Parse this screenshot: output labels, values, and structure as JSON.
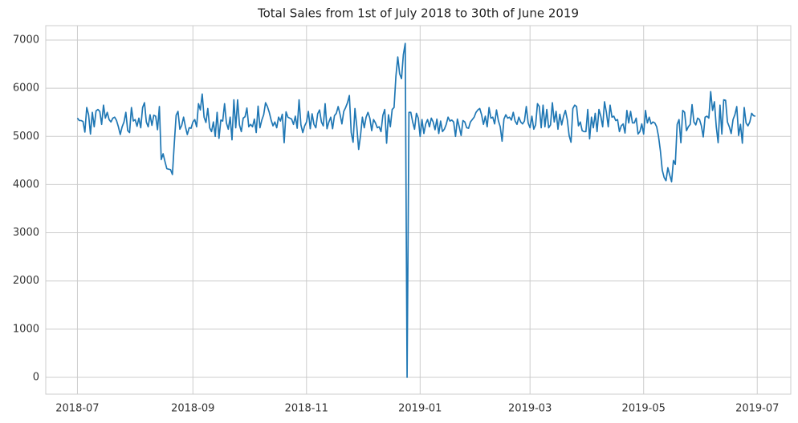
{
  "chart_data": {
    "type": "line",
    "title": "Total Sales from 1st of July 2018 to 30th of June 2019",
    "color": "#1f77b4",
    "grid": true,
    "xlim": [
      -17,
      383
    ],
    "xticks": [
      {
        "value": 0,
        "label": "2018-07"
      },
      {
        "value": 62,
        "label": "2018-09"
      },
      {
        "value": 123,
        "label": "2018-11"
      },
      {
        "value": 184,
        "label": "2019-01"
      },
      {
        "value": 243,
        "label": "2019-03"
      },
      {
        "value": 304,
        "label": "2019-05"
      },
      {
        "value": 365,
        "label": "2019-07"
      }
    ],
    "ylim": [
      -350,
      7300
    ],
    "yticks": [
      0,
      1000,
      2000,
      3000,
      4000,
      5000,
      6000,
      7000
    ],
    "values": [
      5380,
      5330,
      5330,
      5310,
      5090,
      5600,
      5450,
      5050,
      5500,
      5200,
      5530,
      5560,
      5520,
      5250,
      5650,
      5380,
      5500,
      5350,
      5300,
      5380,
      5400,
      5330,
      5200,
      5040,
      5200,
      5300,
      5500,
      5120,
      5080,
      5600,
      5320,
      5350,
      5210,
      5380,
      5180,
      5600,
      5700,
      5300,
      5200,
      5450,
      5230,
      5440,
      5420,
      5140,
      5620,
      4520,
      4640,
      4480,
      4330,
      4320,
      4310,
      4210,
      4850,
      5440,
      5520,
      5150,
      5230,
      5400,
      5200,
      5040,
      5180,
      5170,
      5300,
      5350,
      5200,
      5680,
      5550,
      5880,
      5400,
      5290,
      5580,
      5180,
      5100,
      5300,
      5000,
      5500,
      4960,
      5340,
      5320,
      5680,
      5280,
      5150,
      5400,
      4930,
      5760,
      5180,
      5760,
      5240,
      5100,
      5380,
      5410,
      5590,
      5200,
      5250,
      5200,
      5360,
      5080,
      5630,
      5180,
      5340,
      5450,
      5700,
      5620,
      5500,
      5340,
      5220,
      5300,
      5180,
      5400,
      5320,
      5460,
      4870,
      5510,
      5400,
      5380,
      5360,
      5250,
      5420,
      5170,
      5760,
      5240,
      5080,
      5220,
      5300,
      5520,
      5160,
      5470,
      5250,
      5180,
      5470,
      5550,
      5300,
      5220,
      5680,
      5160,
      5300,
      5400,
      5160,
      5430,
      5480,
      5620,
      5460,
      5260,
      5520,
      5600,
      5700,
      5850,
      5080,
      4880,
      5580,
      5200,
      4730,
      5020,
      5400,
      5180,
      5400,
      5500,
      5380,
      5120,
      5350,
      5280,
      5180,
      5200,
      5100,
      5440,
      5560,
      4860,
      5450,
      5200,
      5560,
      5600,
      6250,
      6650,
      6300,
      6200,
      6700,
      6930,
      0,
      5500,
      5500,
      5300,
      5150,
      5480,
      5380,
      5000,
      5350,
      5060,
      5260,
      5350,
      5200,
      5380,
      5300,
      5140,
      5360,
      5060,
      5320,
      5100,
      5150,
      5250,
      5400,
      5320,
      5340,
      5300,
      5000,
      5360,
      5200,
      5020,
      5330,
      5300,
      5180,
      5170,
      5300,
      5350,
      5400,
      5500,
      5550,
      5580,
      5450,
      5250,
      5420,
      5200,
      5600,
      5380,
      5400,
      5260,
      5550,
      5330,
      5200,
      4900,
      5360,
      5450,
      5380,
      5400,
      5340,
      5500,
      5320,
      5250,
      5400,
      5300,
      5260,
      5320,
      5620,
      5280,
      5180,
      5420,
      5150,
      5240,
      5680,
      5620,
      5180,
      5650,
      5200,
      5560,
      5180,
      5240,
      5700,
      5300,
      5520,
      5150,
      5460,
      5240,
      5420,
      5540,
      5350,
      5020,
      4880,
      5580,
      5650,
      5620,
      5220,
      5300,
      5120,
      5100,
      5100,
      5560,
      4950,
      5400,
      5180,
      5480,
      5100,
      5560,
      5420,
      5200,
      5720,
      5500,
      5200,
      5650,
      5400,
      5420,
      5330,
      5350,
      5100,
      5220,
      5260,
      5070,
      5540,
      5280,
      5520,
      5280,
      5280,
      5380,
      5050,
      5100,
      5260,
      5050,
      5540,
      5280,
      5400,
      5260,
      5300,
      5280,
      5200,
      5000,
      4700,
      4300,
      4150,
      4080,
      4350,
      4200,
      4060,
      4500,
      4420,
      5250,
      5350,
      4870,
      5540,
      5500,
      5120,
      5200,
      5250,
      5660,
      5300,
      5240,
      5380,
      5350,
      5220,
      4990,
      5400,
      5420,
      5380,
      5930,
      5540,
      5720,
      5200,
      4870,
      5650,
      5050,
      5760,
      5750,
      5300,
      5200,
      5060,
      5350,
      5450,
      5620,
      5020,
      5250,
      4860,
      5600,
      5280,
      5220,
      5300,
      5480,
      5430,
      5420
    ]
  }
}
